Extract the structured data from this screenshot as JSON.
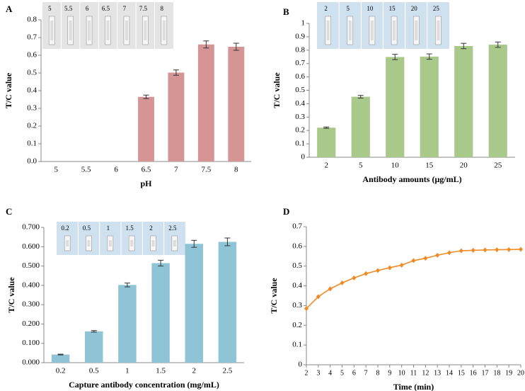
{
  "chart_data": [
    {
      "type": "bar",
      "panel_label": "A",
      "ylabel": "T/C value",
      "xlabel": "pH",
      "color": "#d49594",
      "categories": [
        "5",
        "5.5",
        "6",
        "6.5",
        "7",
        "7.5",
        "8"
      ],
      "values": [
        0,
        0,
        0,
        0.365,
        0.502,
        0.661,
        0.648
      ],
      "errors": [
        0,
        0,
        0,
        0.01,
        0.015,
        0.02,
        0.02
      ],
      "ylim": [
        0,
        0.8
      ],
      "yticks": [
        {
          "value": 0,
          "label": "0.0"
        },
        0.1,
        0.2,
        0.3,
        0.4,
        0.5,
        0.6,
        0.7,
        0.8
      ],
      "inset_labels": [
        "5",
        "5.5",
        "6",
        "6.5",
        "7",
        "7.5",
        "8"
      ]
    },
    {
      "type": "bar",
      "panel_label": "B",
      "ylabel": "T/C value",
      "xlabel": "Antibody amounts (μg/mL)",
      "color": "#a9c98b",
      "categories": [
        "2",
        "5",
        "10",
        "15",
        "20",
        "25"
      ],
      "values": [
        0.221,
        0.452,
        0.749,
        0.752,
        0.831,
        0.841
      ],
      "errors": [
        0.005,
        0.01,
        0.02,
        0.02,
        0.02,
        0.02
      ],
      "ylim": [
        0,
        1
      ],
      "yticks": [
        0,
        0.1,
        0.2,
        0.3,
        0.4,
        0.5,
        0.6,
        0.7,
        0.8,
        0.9,
        1
      ],
      "inset_labels": [
        "2",
        "5",
        "10",
        "15",
        "20",
        "25"
      ]
    },
    {
      "type": "bar",
      "panel_label": "C",
      "ylabel": "T/C value",
      "xlabel": "Capture antibody concentration (mg/mL)",
      "color": "#8fc4d6",
      "categories": [
        "0.2",
        "0.5",
        "1",
        "1.5",
        "2",
        "2.5"
      ],
      "values": [
        0.042,
        0.162,
        0.402,
        0.515,
        0.615,
        0.625
      ],
      "errors": [
        0.002,
        0.004,
        0.01,
        0.015,
        0.018,
        0.02
      ],
      "ylim": [
        0,
        0.7
      ],
      "yticks": [
        {
          "value": 0,
          "label": "0.000"
        },
        {
          "value": 0.1,
          "label": "0.100"
        },
        {
          "value": 0.2,
          "label": "0.200"
        },
        {
          "value": 0.3,
          "label": "0.300"
        },
        {
          "value": 0.4,
          "label": "0.400"
        },
        {
          "value": 0.5,
          "label": "0.500"
        },
        {
          "value": 0.6,
          "label": "0.600"
        },
        {
          "value": 0.7,
          "label": "0.700"
        }
      ],
      "inset_labels": [
        "0.2",
        "0.5",
        "1",
        "1.5",
        "2",
        "2.5"
      ]
    },
    {
      "type": "line",
      "panel_label": "D",
      "ylabel": "T/C value",
      "xlabel": "Time (min)",
      "color": "#f08a24",
      "x": [
        2,
        3,
        4,
        5,
        6,
        7,
        8,
        9,
        10,
        11,
        12,
        13,
        14,
        15,
        16,
        17,
        18,
        19,
        20
      ],
      "values": [
        0.285,
        0.345,
        0.385,
        0.415,
        0.44,
        0.462,
        0.478,
        0.492,
        0.505,
        0.528,
        0.54,
        0.555,
        0.568,
        0.578,
        0.58,
        0.582,
        0.583,
        0.584,
        0.585
      ],
      "xlim": [
        2,
        20
      ],
      "xticks": [
        2,
        3,
        4,
        5,
        6,
        7,
        8,
        9,
        10,
        11,
        12,
        13,
        14,
        15,
        16,
        17,
        18,
        19,
        20
      ],
      "ylim": [
        0,
        0.7
      ],
      "yticks": [
        0,
        0.1,
        0.2,
        0.3,
        0.4,
        0.5,
        0.6,
        0.7
      ]
    }
  ]
}
